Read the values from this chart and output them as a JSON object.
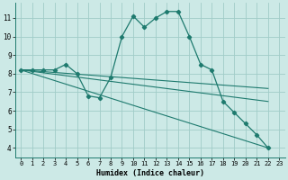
{
  "xlabel": "Humidex (Indice chaleur)",
  "ylabel": "",
  "xlim": [
    -0.5,
    23.5
  ],
  "ylim": [
    3.5,
    11.8
  ],
  "yticks": [
    4,
    5,
    6,
    7,
    8,
    9,
    10,
    11
  ],
  "xticks": [
    0,
    1,
    2,
    3,
    4,
    5,
    6,
    7,
    8,
    9,
    10,
    11,
    12,
    13,
    14,
    15,
    16,
    17,
    18,
    19,
    20,
    21,
    22,
    23
  ],
  "background_color": "#cce9e6",
  "grid_color": "#a0ccc8",
  "line_color": "#1e7a6e",
  "main_series": {
    "x": [
      0,
      1,
      2,
      3,
      4,
      5,
      6,
      7,
      8,
      9,
      10,
      11,
      12,
      13,
      14,
      15,
      16,
      17,
      18,
      19,
      20,
      21,
      22
    ],
    "y": [
      8.2,
      8.2,
      8.2,
      8.2,
      8.5,
      8.0,
      6.8,
      6.7,
      7.8,
      10.0,
      11.1,
      10.5,
      11.0,
      11.35,
      11.35,
      10.0,
      8.5,
      8.2,
      6.5,
      5.9,
      5.3,
      4.7,
      4.0
    ]
  },
  "ref_lines": [
    {
      "x0": 0,
      "y0": 8.2,
      "x1": 22,
      "y1": 4.0
    },
    {
      "x0": 0,
      "y0": 8.2,
      "x1": 22,
      "y1": 6.5
    },
    {
      "x0": 0,
      "y0": 8.2,
      "x1": 22,
      "y1": 7.2
    }
  ]
}
